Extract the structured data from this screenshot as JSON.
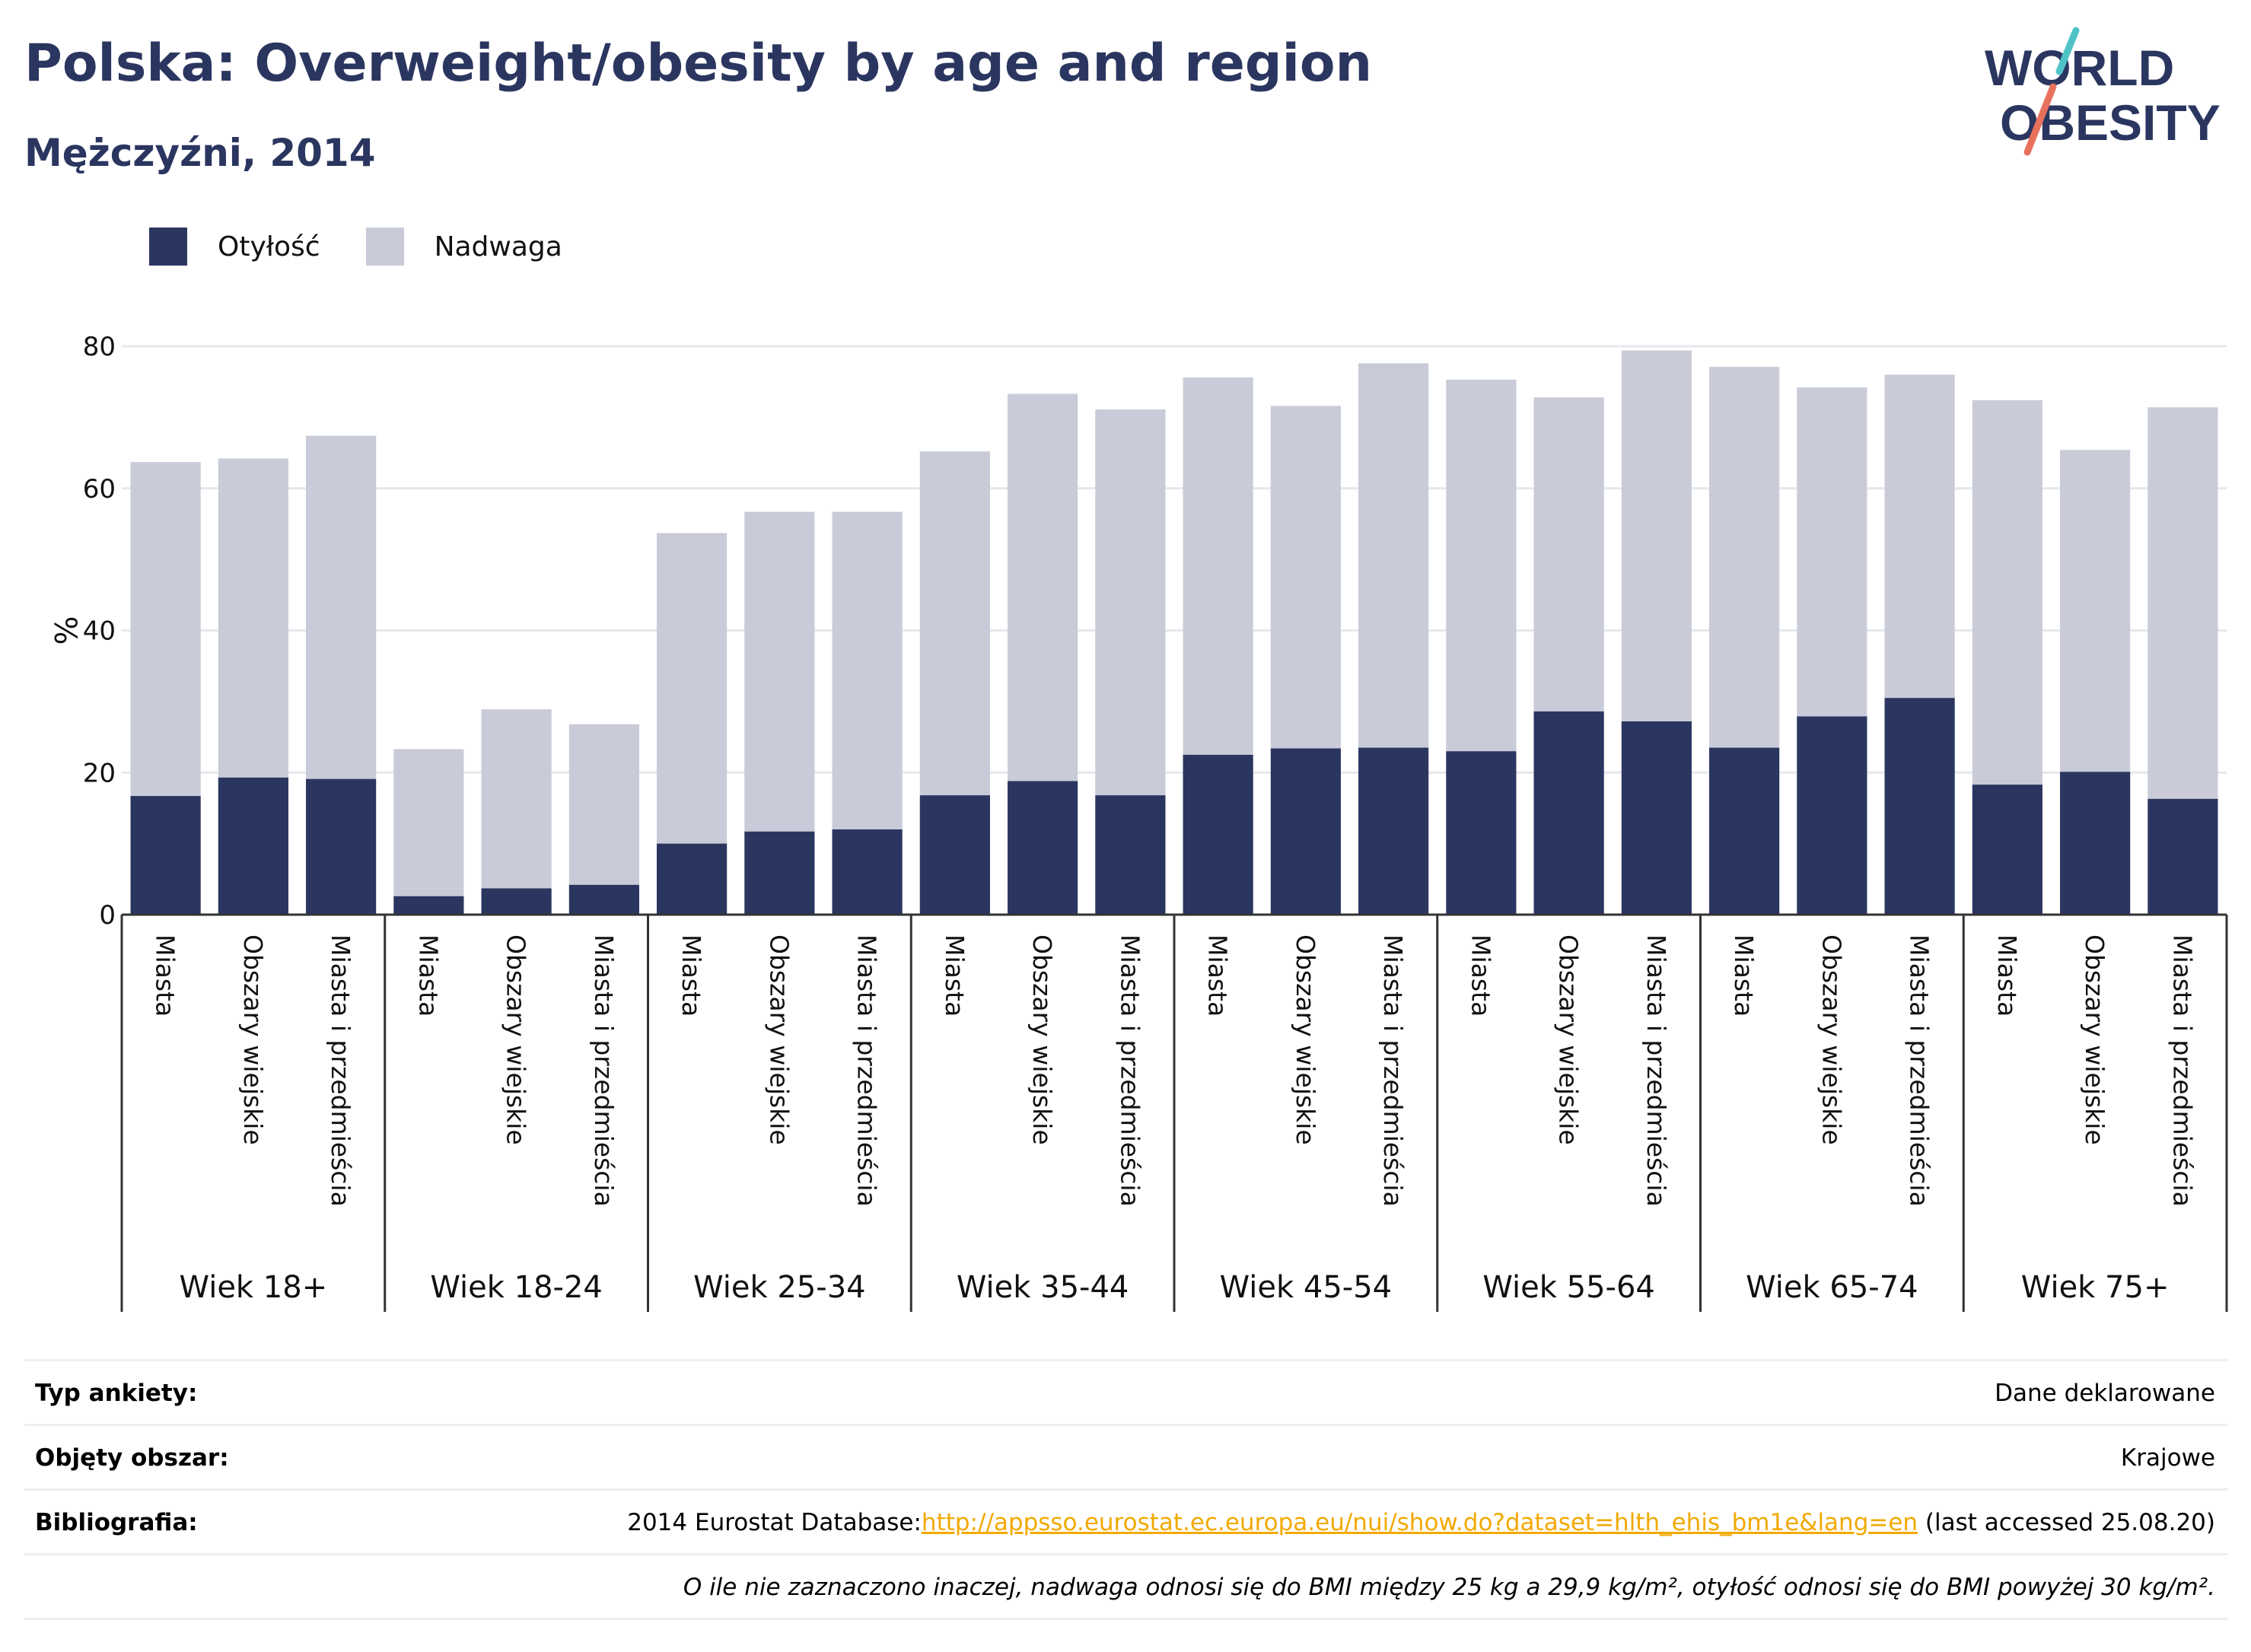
{
  "header": {
    "title": "Polska: Overweight/obesity by age and region",
    "subtitle": "Mężczyźni, 2014",
    "logo_line1": "WORLD",
    "logo_line2": "OBESITY"
  },
  "colors": {
    "obesity": "#2b3660",
    "overweight": "#c9ccd8",
    "title": "#2b3660",
    "link": "#f2a900",
    "logo_slash_top": "#4fc2c6",
    "logo_slash_bottom": "#e8715e"
  },
  "chart_data": {
    "type": "bar",
    "stacked": true,
    "ylabel": "%",
    "ylim": [
      0,
      80
    ],
    "yticks": [
      0,
      20,
      40,
      60,
      80
    ],
    "grid": true,
    "legend_position": "top-left",
    "legend": [
      "Otyłość",
      "Nadwaga"
    ],
    "groups": [
      "Wiek 18+",
      "Wiek 18-24",
      "Wiek 25-34",
      "Wiek 35-44",
      "Wiek 45-54",
      "Wiek 55-64",
      "Wiek 65-74",
      "Wiek 75+"
    ],
    "subcategories": [
      "Miasta",
      "Obszary wiejskie",
      "Miasta i przedmieścia"
    ],
    "series": [
      {
        "name": "Otyłość",
        "values": [
          16.7,
          19.3,
          19.1,
          2.6,
          3.7,
          4.2,
          10.0,
          11.7,
          12.0,
          16.8,
          18.8,
          16.8,
          22.5,
          23.4,
          23.5,
          23.0,
          28.6,
          27.2,
          23.5,
          27.9,
          30.5,
          18.3,
          20.1,
          16.3
        ]
      },
      {
        "name": "Nadwaga",
        "values": [
          47.0,
          44.9,
          48.3,
          20.7,
          25.2,
          22.6,
          43.7,
          45.0,
          44.7,
          48.4,
          54.5,
          54.3,
          53.1,
          48.2,
          54.1,
          52.3,
          44.2,
          52.2,
          53.6,
          46.3,
          45.5,
          54.1,
          45.3,
          55.1
        ]
      }
    ]
  },
  "table": {
    "survey_type_label": "Typ ankiety:",
    "survey_type_value": "Dane deklarowane",
    "area_label": "Objęty obszar:",
    "area_value": "Krajowe",
    "bibliography_label": "Bibliografia:",
    "bibliography_prefix": "2014 Eurostat Database:",
    "bibliography_link": "http://appsso.eurostat.ec.europa.eu/nui/show.do?dataset=hlth_ehis_bm1e&lang=en",
    "bibliography_suffix": " (last accessed 25.08.20)",
    "note": "O ile nie zaznaczono inaczej, nadwaga odnosi się do BMI między 25 kg a 29,9 kg/m², otyłość odnosi się do BMI powyżej 30 kg/m²."
  }
}
